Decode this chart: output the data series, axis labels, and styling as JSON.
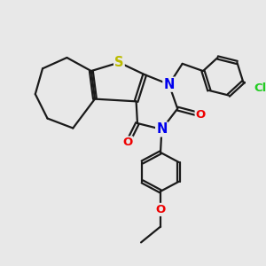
{
  "background_color": "#e8e8e8",
  "bond_color": "#1a1a1a",
  "S_color": "#bbbb00",
  "N_color": "#0000ee",
  "O_color": "#ee0000",
  "Cl_color": "#22cc22",
  "line_width": 1.6,
  "dbo": 0.055,
  "font_size": 9.5,
  "figsize": [
    3.0,
    3.0
  ],
  "dpi": 100,
  "xlim": [
    0,
    10
  ],
  "ylim": [
    0,
    10
  ]
}
